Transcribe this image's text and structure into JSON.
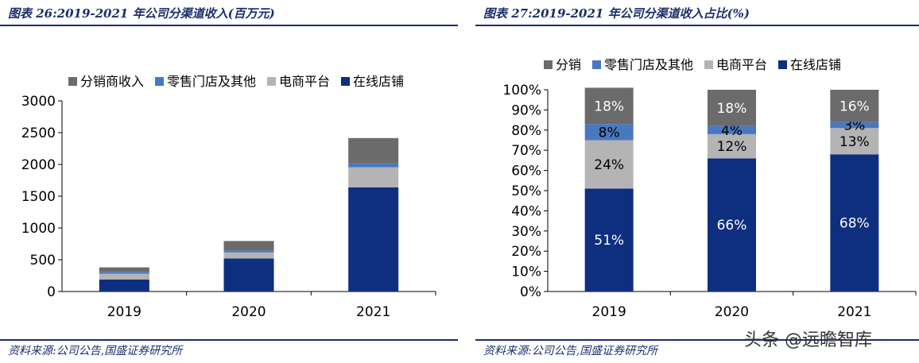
{
  "left_panel": {
    "title": "图表 26:2019-2021 年公司分渠道收入(百万元)",
    "source": "资料来源:公司公告,国盛证券研究所"
  },
  "right_panel": {
    "title": "图表 27:2019-2021 年公司分渠道收入占比(%)",
    "source": "资料来源:公司公告,国盛证券研究所"
  },
  "watermark": "头条 @远瞻智库",
  "colors": {
    "online_store": "#0e2f7f",
    "ecommerce_platform": "#b4b4b4",
    "retail_and_other": "#4a78c0",
    "distribution": "#6b6b6b",
    "rule": "#1a2f6b"
  },
  "chart_data": [
    {
      "type": "bar",
      "stacked": true,
      "title": "图表 26:2019-2021 年公司分渠道收入(百万元)",
      "categories": [
        "2019",
        "2020",
        "2021"
      ],
      "series": [
        {
          "name": "在线店铺",
          "color_key": "online_store",
          "values": [
            190,
            520,
            1640
          ]
        },
        {
          "name": "电商平台",
          "color_key": "ecommerce_platform",
          "values": [
            90,
            95,
            315
          ]
        },
        {
          "name": "零售门店及其他",
          "color_key": "retail_and_other",
          "values": [
            30,
            30,
            60
          ]
        },
        {
          "name": "分销商收入",
          "color_key": "distribution",
          "values": [
            70,
            150,
            400
          ]
        }
      ],
      "legend_order": [
        "分销商收入",
        "零售门店及其他",
        "电商平台",
        "在线店铺"
      ],
      "ylim": [
        0,
        3000
      ],
      "yticks": [
        "0",
        "500",
        "1000",
        "1500",
        "2000",
        "2500",
        "3000"
      ],
      "ytick_values": [
        0,
        500,
        1000,
        1500,
        2000,
        2500,
        3000
      ],
      "legend_position": "top",
      "xlabel": "",
      "ylabel": ""
    },
    {
      "type": "bar",
      "stacked": true,
      "title": "图表 27:2019-2021 年公司分渠道收入占比(%)",
      "categories": [
        "2019",
        "2020",
        "2021"
      ],
      "series": [
        {
          "name": "在线店铺",
          "color_key": "online_store",
          "values": [
            51,
            66,
            68
          ],
          "labels": [
            "51%",
            "66%",
            "68%"
          ],
          "label_color": "#ffffff"
        },
        {
          "name": "电商平台",
          "color_key": "ecommerce_platform",
          "values": [
            24,
            12,
            13
          ],
          "labels": [
            "24%",
            "12%",
            "13%"
          ],
          "label_color": "#000000"
        },
        {
          "name": "零售门店及其他",
          "color_key": "retail_and_other",
          "values": [
            8,
            4,
            3
          ],
          "labels": [
            "8%",
            "4%",
            "3%"
          ],
          "label_color": "#000000"
        },
        {
          "name": "分销",
          "color_key": "distribution",
          "values": [
            18,
            18,
            16
          ],
          "labels": [
            "18%",
            "18%",
            "16%"
          ],
          "label_color": "#ffffff"
        }
      ],
      "legend_order": [
        "分销",
        "零售门店及其他",
        "电商平台",
        "在线店铺"
      ],
      "ylim": [
        0,
        100
      ],
      "yticks": [
        "0%",
        "10%",
        "20%",
        "30%",
        "40%",
        "50%",
        "60%",
        "70%",
        "80%",
        "90%",
        "100%"
      ],
      "ytick_values": [
        0,
        10,
        20,
        30,
        40,
        50,
        60,
        70,
        80,
        90,
        100
      ],
      "legend_position": "top",
      "xlabel": "",
      "ylabel": ""
    }
  ]
}
